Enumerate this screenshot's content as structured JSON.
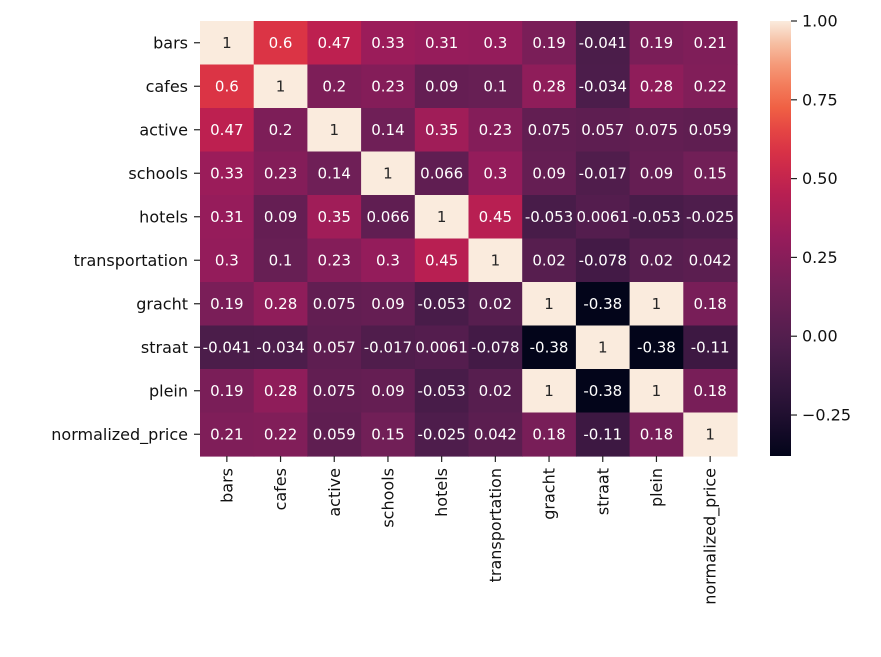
{
  "chart_data": {
    "type": "heatmap",
    "title": "",
    "xlabel": "",
    "ylabel": "",
    "row_labels": [
      "bars",
      "cafes",
      "active",
      "schools",
      "hotels",
      "transportation",
      "gracht",
      "straat",
      "plein",
      "normalized_price"
    ],
    "col_labels": [
      "bars",
      "cafes",
      "active",
      "schools",
      "hotels",
      "transportation",
      "gracht",
      "straat",
      "plein",
      "normalized_price"
    ],
    "values": [
      [
        1,
        0.6,
        0.47,
        0.33,
        0.31,
        0.3,
        0.19,
        -0.041,
        0.19,
        0.21
      ],
      [
        0.6,
        1,
        0.2,
        0.23,
        0.09,
        0.1,
        0.28,
        -0.034,
        0.28,
        0.22
      ],
      [
        0.47,
        0.2,
        1,
        0.14,
        0.35,
        0.23,
        0.075,
        0.057,
        0.075,
        0.059
      ],
      [
        0.33,
        0.23,
        0.14,
        1,
        0.066,
        0.3,
        0.09,
        -0.017,
        0.09,
        0.15
      ],
      [
        0.31,
        0.09,
        0.35,
        0.066,
        1,
        0.45,
        -0.053,
        0.0061,
        -0.053,
        -0.025
      ],
      [
        0.3,
        0.1,
        0.23,
        0.3,
        0.45,
        1,
        0.02,
        -0.078,
        0.02,
        0.042
      ],
      [
        0.19,
        0.28,
        0.075,
        0.09,
        -0.053,
        0.02,
        1,
        -0.38,
        1,
        0.18
      ],
      [
        -0.041,
        -0.034,
        0.057,
        -0.017,
        0.0061,
        -0.078,
        -0.38,
        1,
        -0.38,
        -0.11
      ],
      [
        0.19,
        0.28,
        0.075,
        0.09,
        -0.053,
        0.02,
        1,
        -0.38,
        1,
        0.18
      ],
      [
        0.21,
        0.22,
        0.059,
        0.15,
        -0.025,
        0.042,
        0.18,
        -0.11,
        0.18,
        1
      ]
    ],
    "annotations": [
      [
        "1",
        "0.6",
        "0.47",
        "0.33",
        "0.31",
        "0.3",
        "0.19",
        "-0.041",
        "0.19",
        "0.21"
      ],
      [
        "0.6",
        "1",
        "0.2",
        "0.23",
        "0.09",
        "0.1",
        "0.28",
        "-0.034",
        "0.28",
        "0.22"
      ],
      [
        "0.47",
        "0.2",
        "1",
        "0.14",
        "0.35",
        "0.23",
        "0.075",
        "0.057",
        "0.075",
        "0.059"
      ],
      [
        "0.33",
        "0.23",
        "0.14",
        "1",
        "0.066",
        "0.3",
        "0.09",
        "-0.017",
        "0.09",
        "0.15"
      ],
      [
        "0.31",
        "0.09",
        "0.35",
        "0.066",
        "1",
        "0.45",
        "-0.053",
        "0.0061",
        "-0.053",
        "-0.025"
      ],
      [
        "0.3",
        "0.1",
        "0.23",
        "0.3",
        "0.45",
        "1",
        "0.02",
        "-0.078",
        "0.02",
        "0.042"
      ],
      [
        "0.19",
        "0.28",
        "0.075",
        "0.09",
        "-0.053",
        "0.02",
        "1",
        "-0.38",
        "1",
        "0.18"
      ],
      [
        "-0.041",
        "-0.034",
        "0.057",
        "-0.017",
        "0.0061",
        "-0.078",
        "-0.38",
        "1",
        "-0.38",
        "-0.11"
      ],
      [
        "0.19",
        "0.28",
        "0.075",
        "0.09",
        "-0.053",
        "0.02",
        "1",
        "-0.38",
        "1",
        "0.18"
      ],
      [
        "0.21",
        "0.22",
        "0.059",
        "0.15",
        "-0.025",
        "0.042",
        "0.18",
        "-0.11",
        "0.18",
        "1"
      ]
    ],
    "colorbar": {
      "range": [
        -0.38,
        1.0
      ],
      "ticks": [
        1.0,
        0.75,
        0.5,
        0.25,
        0.0,
        -0.25
      ],
      "tick_labels": [
        "1.00",
        "0.75",
        "0.50",
        "0.25",
        "0.00",
        "−0.25"
      ]
    },
    "colormap": "rocket",
    "grid": false
  }
}
